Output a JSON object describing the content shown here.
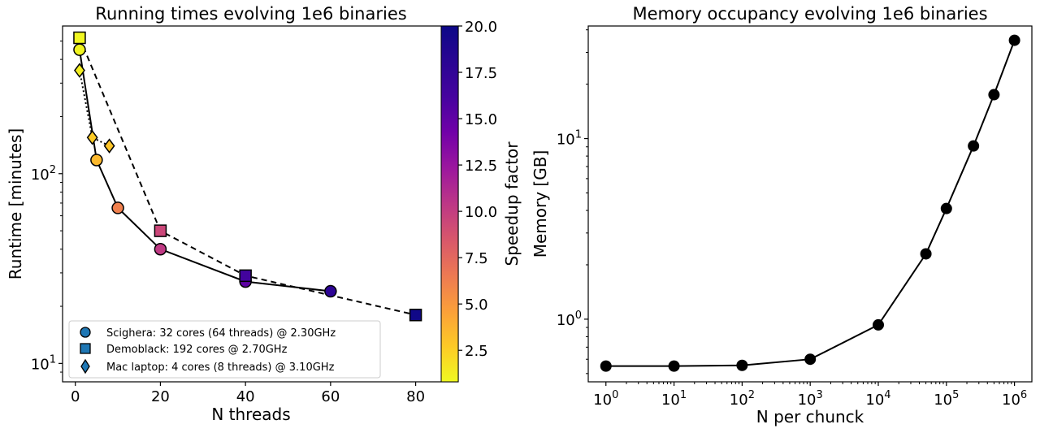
{
  "chart_data": [
    {
      "type": "scatter",
      "title": "Running times  evolving 1e6 binaries",
      "xlabel": "N threads",
      "ylabel": "Runtime [minutes]",
      "xlim": [
        -3,
        86
      ],
      "ylim": [
        8,
        600
      ],
      "yscale": "log",
      "x_ticks": [
        0,
        20,
        40,
        60,
        80
      ],
      "y_ticks": [
        {
          "value": 10,
          "base": "10",
          "exp": "1"
        },
        {
          "value": 100,
          "base": "10",
          "exp": "2"
        }
      ],
      "grid": false,
      "legend_position": "lower-left",
      "colorbar": {
        "label": "Speedup factor",
        "range": [
          0.8,
          20.0
        ],
        "colormap": "plasma",
        "ticks": [
          "2.5",
          "5.0",
          "7.5",
          "10.0",
          "12.5",
          "15.0",
          "17.5",
          "20.0"
        ]
      },
      "series": [
        {
          "name": "Scighera: 32 cores (64 threads)  @ 2.30GHz",
          "marker": "circle",
          "line": "solid",
          "x": [
            1,
            5,
            10,
            20,
            40,
            60
          ],
          "y": [
            450,
            118,
            66,
            40,
            27,
            24
          ],
          "speedup": [
            1.0,
            3.8,
            6.8,
            11.3,
            16.7,
            18.8
          ]
        },
        {
          "name": "Demoblack: 192 cores  @ 2.70GHz",
          "marker": "square",
          "line": "dashed",
          "x": [
            1,
            20,
            40,
            80
          ],
          "y": [
            520,
            50,
            29,
            18
          ],
          "speedup": [
            0.9,
            10.4,
            18.0,
            19.9
          ]
        },
        {
          "name": "Mac laptop: 4 cores (8 threads)  @ 3.10GHz",
          "marker": "diamond",
          "line": "dotted",
          "x": [
            1,
            4,
            8
          ],
          "y": [
            350,
            155,
            140
          ],
          "speedup": [
            1.3,
            2.9,
            3.2
          ]
        }
      ]
    },
    {
      "type": "line",
      "title": "Memory occupancy  evolving 1e6 binaries",
      "xlabel": "N per chunck",
      "ylabel": "Memory [GB]",
      "xscale": "log",
      "yscale": "log",
      "xlim": [
        0.55,
        1800000
      ],
      "ylim": [
        0.45,
        42
      ],
      "x_ticks": [
        {
          "value": 1,
          "base": "10",
          "exp": "0"
        },
        {
          "value": 10,
          "base": "10",
          "exp": "1"
        },
        {
          "value": 100,
          "base": "10",
          "exp": "2"
        },
        {
          "value": 1000,
          "base": "10",
          "exp": "3"
        },
        {
          "value": 10000,
          "base": "10",
          "exp": "4"
        },
        {
          "value": 100000,
          "base": "10",
          "exp": "5"
        },
        {
          "value": 1000000,
          "base": "10",
          "exp": "6"
        }
      ],
      "y_ticks": [
        {
          "value": 1,
          "base": "10",
          "exp": "0"
        },
        {
          "value": 10,
          "base": "10",
          "exp": "1"
        }
      ],
      "grid": false,
      "series": [
        {
          "x": [
            1,
            10,
            100,
            1000,
            10000,
            50000,
            100000,
            250000,
            500000,
            1000000
          ],
          "y": [
            0.55,
            0.55,
            0.555,
            0.6,
            0.93,
            2.3,
            4.1,
            9.1,
            17.5,
            35
          ]
        }
      ]
    }
  ]
}
